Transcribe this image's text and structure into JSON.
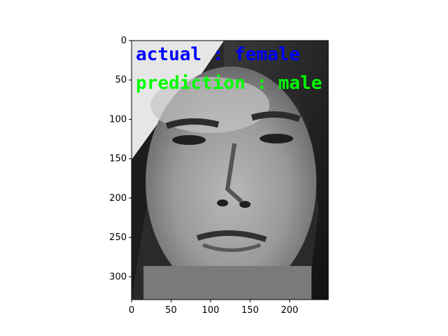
{
  "chart_data": {
    "type": "image",
    "image_description_subject": "grayscale face",
    "xlim": [
      0,
      249
    ],
    "ylim": [
      329,
      0
    ],
    "xticks": [
      0,
      50,
      100,
      150,
      200
    ],
    "yticks": [
      0,
      50,
      100,
      150,
      200,
      250,
      300
    ],
    "annotations": [
      {
        "text": "actual : female",
        "color": "#0000ff"
      },
      {
        "text": "prediction : male",
        "color": "#00ff00"
      }
    ]
  }
}
